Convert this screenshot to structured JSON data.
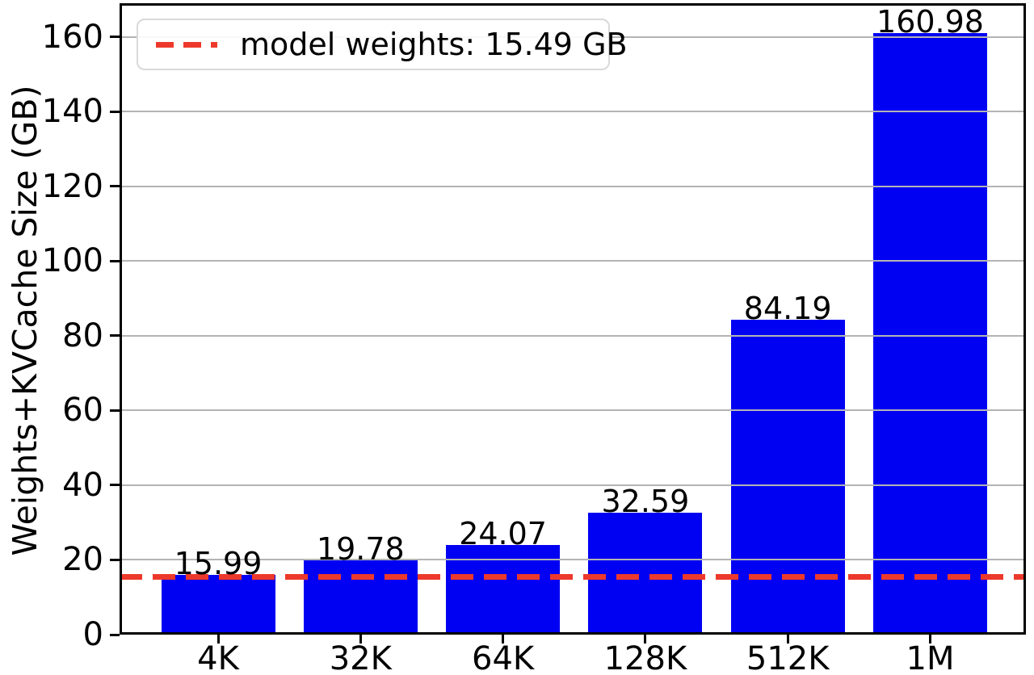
{
  "chart_data": {
    "type": "bar",
    "title": "",
    "xlabel": "",
    "ylabel": "Weights+KVCache Size (GB)",
    "categories": [
      "4K",
      "32K",
      "64K",
      "128K",
      "512K",
      "1M"
    ],
    "values": [
      15.99,
      19.78,
      24.07,
      32.59,
      84.19,
      160.98
    ],
    "value_labels": [
      "15.99",
      "19.78",
      "24.07",
      "32.59",
      "84.19",
      "160.98"
    ],
    "yticks": [
      0,
      20,
      40,
      60,
      80,
      100,
      120,
      140,
      160
    ],
    "ylim": [
      0,
      169
    ],
    "grid": true,
    "grid_over_bars": true,
    "legend_position": "upper left",
    "bar_color": "#0000f2",
    "grid_color": "#b4b4b4",
    "reference_line": {
      "value": 15.49,
      "label": "model weights: 15.49 GB",
      "color": "#ed392b",
      "style": "dashed"
    }
  }
}
